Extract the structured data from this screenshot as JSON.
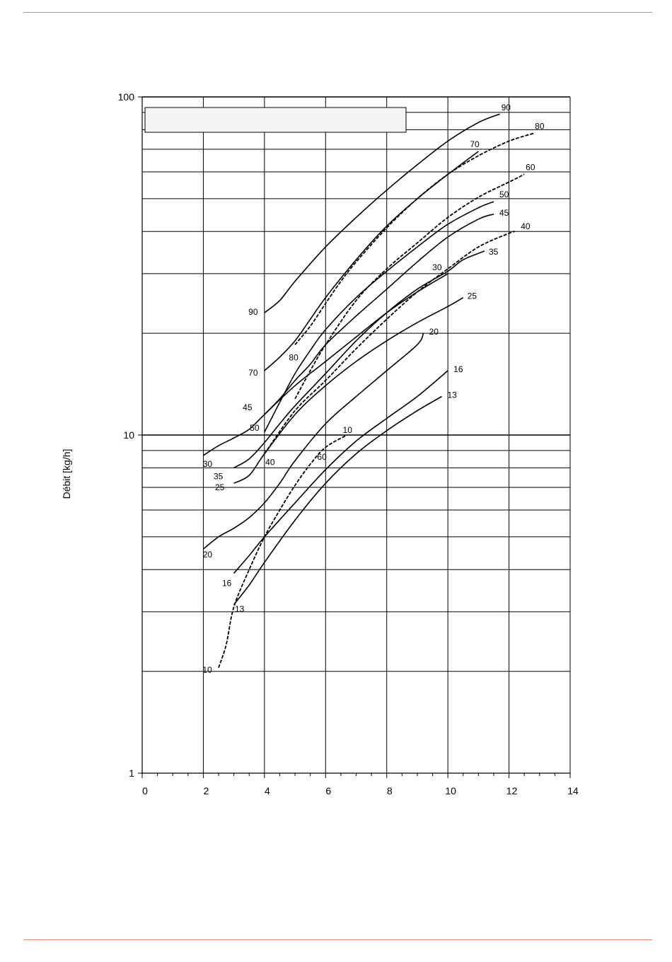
{
  "page": {
    "rule_color": "#f08070"
  },
  "chart_data": {
    "type": "line",
    "title": "",
    "xlabel": "",
    "ylabel": "Débit [kg/h]",
    "xlim": [
      0,
      14
    ],
    "ylim": [
      1,
      100
    ],
    "y_scale": "log",
    "x_ticks": [
      0,
      2,
      4,
      6,
      8,
      10,
      12,
      14
    ],
    "y_tick_labels": [
      1,
      10,
      100
    ],
    "grid": true,
    "legend": "none",
    "line_color": "#000000",
    "grid_color": "#000000",
    "legend_box_fill": "#f4f4f4",
    "series": [
      {
        "label": "90",
        "style": "solid",
        "label_start": "90",
        "label_end": "90",
        "x": [
          4.0,
          4.5,
          5.0,
          6.0,
          7.0,
          8.0,
          9.0,
          10.0,
          11.0,
          11.7
        ],
        "y": [
          23.0,
          25.0,
          28.5,
          36.0,
          44.0,
          53.0,
          63.0,
          74.0,
          84.0,
          89.0
        ]
      },
      {
        "label": "80",
        "style": "dashed",
        "label_start": "80",
        "label_end": "80",
        "x": [
          5.0,
          5.5,
          6.0,
          6.5,
          7.0,
          8.0,
          9.0,
          10.0,
          11.0,
          12.0,
          12.8
        ],
        "y": [
          18.5,
          21.0,
          24.5,
          28.5,
          32.5,
          41.0,
          50.0,
          59.0,
          67.0,
          74.0,
          78.0
        ]
      },
      {
        "label": "70",
        "style": "solid",
        "label_start": "70",
        "label_end": "70",
        "x": [
          4.0,
          4.5,
          5.0,
          5.5,
          6.0,
          7.0,
          8.0,
          9.0,
          10.0,
          11.0
        ],
        "y": [
          15.5,
          17.0,
          19.0,
          22.0,
          25.5,
          33.0,
          41.5,
          50.0,
          59.0,
          69.0
        ]
      },
      {
        "label": "60",
        "style": "dashed",
        "label_start": "60",
        "label_end": "60",
        "x": [
          5.0,
          5.5,
          6.0,
          7.0,
          8.0,
          9.0,
          10.0,
          11.0,
          12.0,
          12.5
        ],
        "y": [
          12.8,
          15.5,
          18.5,
          25.0,
          31.0,
          37.0,
          44.0,
          50.5,
          56.0,
          59.0
        ]
      },
      {
        "label": "50",
        "style": "solid",
        "label_start": "50",
        "label_end": "50",
        "x": [
          4.0,
          4.5,
          5.0,
          5.5,
          6.0,
          7.0,
          8.0,
          9.0,
          10.0,
          11.0,
          11.5
        ],
        "y": [
          10.2,
          12.5,
          15.2,
          17.8,
          20.5,
          25.5,
          30.5,
          36.0,
          42.0,
          47.0,
          49.0
        ]
      },
      {
        "label": "45",
        "style": "solid",
        "label_start": "45",
        "label_end": "45",
        "x": [
          4.0,
          4.5,
          5.0,
          5.5,
          6.0,
          7.0,
          8.0,
          9.0,
          10.0,
          11.0,
          11.5
        ],
        "y": [
          11.5,
          12.8,
          14.5,
          16.2,
          18.5,
          22.5,
          27.0,
          32.5,
          38.5,
          43.5,
          45.0
        ]
      },
      {
        "label": "40",
        "style": "dashed",
        "label_start": "40",
        "label_end": "40",
        "x": [
          4.0,
          5.0,
          6.0,
          7.0,
          8.0,
          9.0,
          10.0,
          11.0,
          12.0,
          12.2
        ],
        "y": [
          8.8,
          11.8,
          14.5,
          18.0,
          22.0,
          26.5,
          31.0,
          36.0,
          39.5,
          40.0
        ]
      },
      {
        "label": "35",
        "style": "solid",
        "label_start": "35",
        "label_end": "35",
        "x": [
          3.0,
          3.5,
          4.0,
          4.5,
          5.0,
          6.0,
          7.0,
          8.0,
          9.0,
          10.0,
          10.5,
          11.2
        ],
        "y": [
          8.0,
          8.5,
          9.5,
          10.8,
          12.2,
          15.2,
          19.0,
          23.0,
          27.0,
          30.5,
          33.0,
          35.0
        ]
      },
      {
        "label": "30",
        "style": "solid",
        "label_start": "30",
        "label_end": "30",
        "x": [
          2.0,
          2.5,
          3.0,
          3.5,
          4.0,
          5.0,
          6.0,
          7.0,
          8.0,
          9.0,
          10.0
        ],
        "y": [
          8.7,
          9.3,
          9.8,
          10.4,
          11.5,
          14.0,
          16.5,
          19.5,
          23.0,
          26.5,
          30.0
        ]
      },
      {
        "label": "25",
        "style": "solid",
        "label_start": "25",
        "label_end": "25",
        "x": [
          3.0,
          3.5,
          4.0,
          5.0,
          6.0,
          7.0,
          8.0,
          9.0,
          10.0,
          10.5
        ],
        "y": [
          7.2,
          7.6,
          8.8,
          11.5,
          14.0,
          16.5,
          19.0,
          21.5,
          24.0,
          25.5
        ]
      },
      {
        "label": "20",
        "style": "solid",
        "label_start": "20",
        "label_end": "20",
        "x": [
          2.0,
          2.5,
          3.0,
          3.5,
          4.0,
          4.5,
          5.0,
          6.0,
          7.0,
          8.0,
          9.0,
          9.2
        ],
        "y": [
          4.6,
          5.0,
          5.3,
          5.7,
          6.3,
          7.2,
          8.4,
          10.8,
          13.0,
          15.5,
          18.5,
          20.0
        ]
      },
      {
        "label": "16",
        "style": "solid",
        "label_start": "16",
        "label_end": "16",
        "x": [
          3.0,
          3.5,
          4.0,
          5.0,
          6.0,
          7.0,
          8.0,
          9.0,
          10.0
        ],
        "y": [
          3.9,
          4.4,
          5.0,
          6.3,
          7.9,
          9.6,
          11.2,
          13.0,
          15.5
        ]
      },
      {
        "label": "13",
        "style": "solid",
        "label_start": "13",
        "label_end": "13",
        "x": [
          3.0,
          3.5,
          4.0,
          5.0,
          6.0,
          7.0,
          8.0,
          9.0,
          9.8
        ],
        "y": [
          3.15,
          3.6,
          4.2,
          5.6,
          7.2,
          8.8,
          10.3,
          11.8,
          13.0
        ]
      },
      {
        "label": "10",
        "style": "dashed",
        "label_start": "10",
        "label_end": "10",
        "x": [
          2.5,
          2.75,
          3.0,
          3.5,
          4.0,
          4.5,
          5.0,
          5.5,
          6.0,
          6.7
        ],
        "y": [
          2.05,
          2.4,
          3.1,
          4.0,
          5.0,
          6.0,
          7.1,
          8.2,
          9.2,
          10.0
        ]
      }
    ]
  }
}
